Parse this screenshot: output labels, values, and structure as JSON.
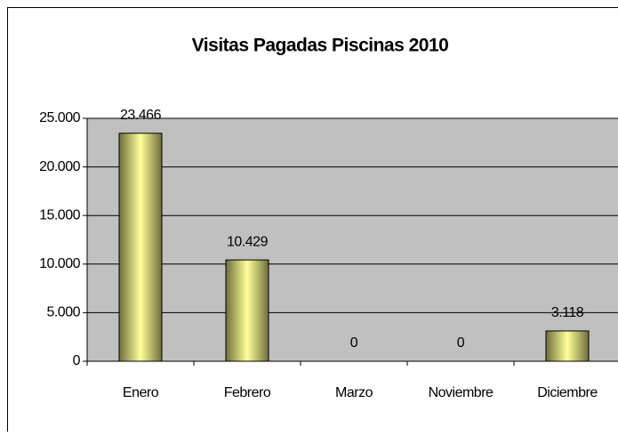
{
  "chart_data": {
    "type": "bar",
    "title": "Visitas Pagadas Piscinas 2010",
    "categories": [
      "Enero",
      "Febrero",
      "Marzo",
      "Noviembre",
      "Diciembre"
    ],
    "values": [
      23466,
      10429,
      0,
      0,
      3118
    ],
    "value_labels": [
      "23.466",
      "10.429",
      "0",
      "0",
      "3.118"
    ],
    "color": "#ffff99",
    "ylim": [
      0,
      25000
    ],
    "yticks": [
      0,
      {
        "value": 5000,
        "label": "5.000"
      },
      {
        "value": 10000,
        "label": "10.000"
      },
      {
        "value": 15000,
        "label": "15.000"
      },
      {
        "value": 20000,
        "label": "20.000"
      },
      {
        "value": 25000,
        "label": "25.000"
      }
    ],
    "grid": true
  }
}
